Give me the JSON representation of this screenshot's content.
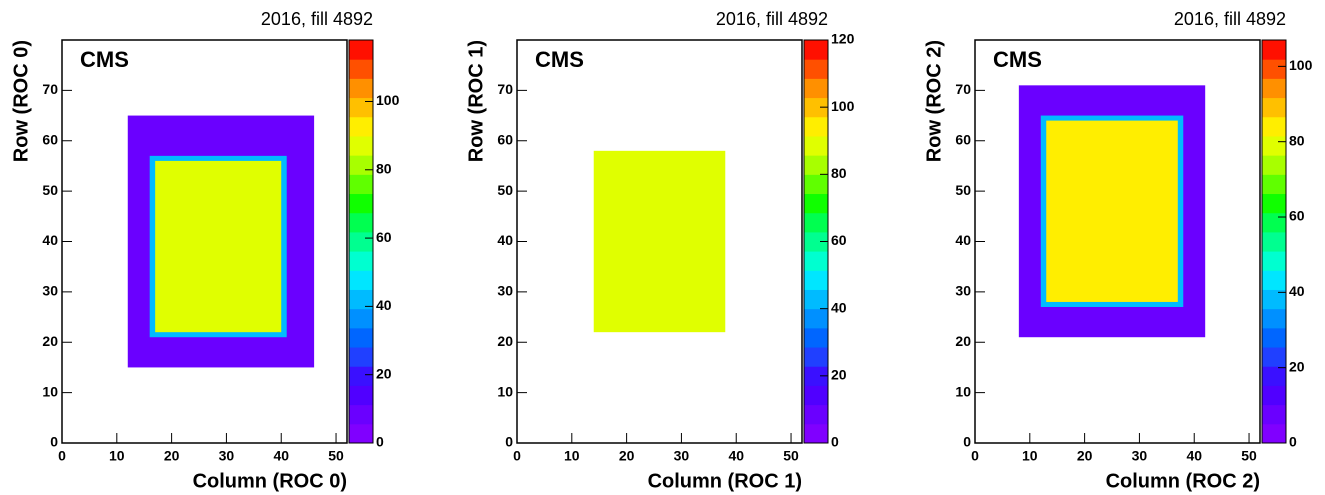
{
  "chart_data": [
    {
      "type": "heatmap",
      "title": "2016, fill 4892",
      "label": "CMS",
      "xlabel": "Column (ROC 0)",
      "ylabel": "Row (ROC 0)",
      "xlim": [
        0,
        52
      ],
      "ylim": [
        0,
        80
      ],
      "xticks": [
        0,
        10,
        20,
        30,
        40,
        50
      ],
      "yticks": [
        0,
        10,
        20,
        30,
        40,
        50,
        60,
        70
      ],
      "zlim": [
        0,
        118
      ],
      "zticks": [
        0,
        20,
        40,
        60,
        80,
        100
      ],
      "palette": [
        "#8000ff",
        "#6a00ff",
        "#5000ff",
        "#3a10ff",
        "#2040ff",
        "#0066ff",
        "#0090ff",
        "#00bbff",
        "#00e6ff",
        "#00ffd0",
        "#00ff90",
        "#00ff50",
        "#10ff00",
        "#60ff00",
        "#a8ff00",
        "#e0ff00",
        "#ffee00",
        "#ffc000",
        "#ff9000",
        "#ff5000",
        "#ff1000"
      ],
      "regions": [
        {
          "x": [
            12,
            46
          ],
          "y": [
            15,
            65
          ],
          "value": 8
        },
        {
          "x": [
            16,
            41
          ],
          "y": [
            21,
            57
          ],
          "value": 40
        },
        {
          "x": [
            17,
            40
          ],
          "y": [
            22,
            56
          ],
          "value": 85
        }
      ]
    },
    {
      "type": "heatmap",
      "title": "2016, fill 4892",
      "label": "CMS",
      "xlabel": "Column (ROC 1)",
      "ylabel": "Row (ROC 1)",
      "xlim": [
        0,
        52
      ],
      "ylim": [
        0,
        80
      ],
      "xticks": [
        0,
        10,
        20,
        30,
        40,
        50
      ],
      "yticks": [
        0,
        10,
        20,
        30,
        40,
        50,
        60,
        70
      ],
      "zlim": [
        0,
        120
      ],
      "zticks": [
        0,
        20,
        40,
        60,
        80,
        100,
        120
      ],
      "palette": [
        "#8000ff",
        "#6a00ff",
        "#5000ff",
        "#3a10ff",
        "#2040ff",
        "#0066ff",
        "#0090ff",
        "#00bbff",
        "#00e6ff",
        "#00ffd0",
        "#00ff90",
        "#00ff50",
        "#10ff00",
        "#60ff00",
        "#a8ff00",
        "#e0ff00",
        "#ffee00",
        "#ffc000",
        "#ff9000",
        "#ff5000",
        "#ff1000"
      ],
      "regions": [
        {
          "x": [
            14,
            38
          ],
          "y": [
            22,
            58
          ],
          "value": 88
        }
      ]
    },
    {
      "type": "heatmap",
      "title": "2016, fill 4892",
      "label": "CMS",
      "xlabel": "Column (ROC 2)",
      "ylabel": "Row (ROC 2)",
      "xlim": [
        0,
        52
      ],
      "ylim": [
        0,
        80
      ],
      "xticks": [
        0,
        10,
        20,
        30,
        40,
        50
      ],
      "yticks": [
        0,
        10,
        20,
        30,
        40,
        50,
        60,
        70
      ],
      "zlim": [
        0,
        107
      ],
      "zticks": [
        0,
        20,
        40,
        60,
        80,
        100
      ],
      "palette": [
        "#8000ff",
        "#6a00ff",
        "#5000ff",
        "#3a10ff",
        "#2040ff",
        "#0066ff",
        "#0090ff",
        "#00bbff",
        "#00e6ff",
        "#00ffd0",
        "#00ff90",
        "#00ff50",
        "#10ff00",
        "#60ff00",
        "#a8ff00",
        "#e0ff00",
        "#ffee00",
        "#ffc000",
        "#ff9000",
        "#ff5000",
        "#ff1000"
      ],
      "regions": [
        {
          "x": [
            8,
            42
          ],
          "y": [
            21,
            71
          ],
          "value": 10
        },
        {
          "x": [
            12,
            38
          ],
          "y": [
            27,
            65
          ],
          "value": 40
        },
        {
          "x": [
            13,
            37
          ],
          "y": [
            28,
            64
          ],
          "value": 85
        }
      ]
    }
  ]
}
